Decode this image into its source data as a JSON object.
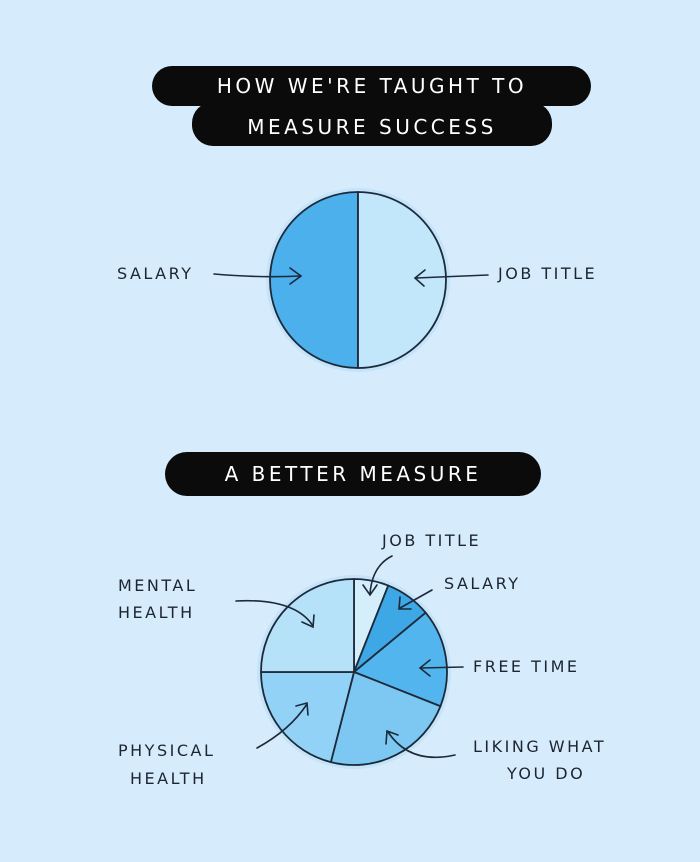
{
  "chart_data": [
    {
      "type": "pie",
      "title_lines": [
        "HOW WE'RE TAUGHT TO",
        "MEASURE SUCCESS"
      ],
      "slices": [
        {
          "label": "SALARY",
          "value": 50,
          "color": "#4bb0ec"
        },
        {
          "label": "JOB TITLE",
          "value": 50,
          "color": "#c2e6fa"
        }
      ],
      "start": "top",
      "direction": "counterclockwise-from-salary"
    },
    {
      "type": "pie",
      "title_lines": [
        "A BETTER MEASURE"
      ],
      "slices": [
        {
          "label": "JOB TITLE",
          "value": 6,
          "color": "#d5eefc"
        },
        {
          "label": "SALARY",
          "value": 8,
          "color": "#3ea8e6"
        },
        {
          "label": "FREE TIME",
          "value": 17,
          "color": "#52b5ee"
        },
        {
          "label": "LIKING WHAT YOU DO",
          "label_lines": [
            "LIKING WHAT",
            "YOU DO"
          ],
          "value": 23,
          "color": "#7cc8f3"
        },
        {
          "label": "PHYSICAL HEALTH",
          "label_lines": [
            "PHYSICAL",
            "HEALTH"
          ],
          "value": 21,
          "color": "#92d2f6"
        },
        {
          "label": "MENTAL HEALTH",
          "label_lines": [
            "MENTAL",
            "HEALTH"
          ],
          "value": 25,
          "color": "#b5e1f9"
        }
      ],
      "start": "top",
      "direction": "clockwise"
    }
  ],
  "colors": {
    "background": "#d6ecfc",
    "pill": "#0b0b0b",
    "ink": "#1d2a3a"
  }
}
